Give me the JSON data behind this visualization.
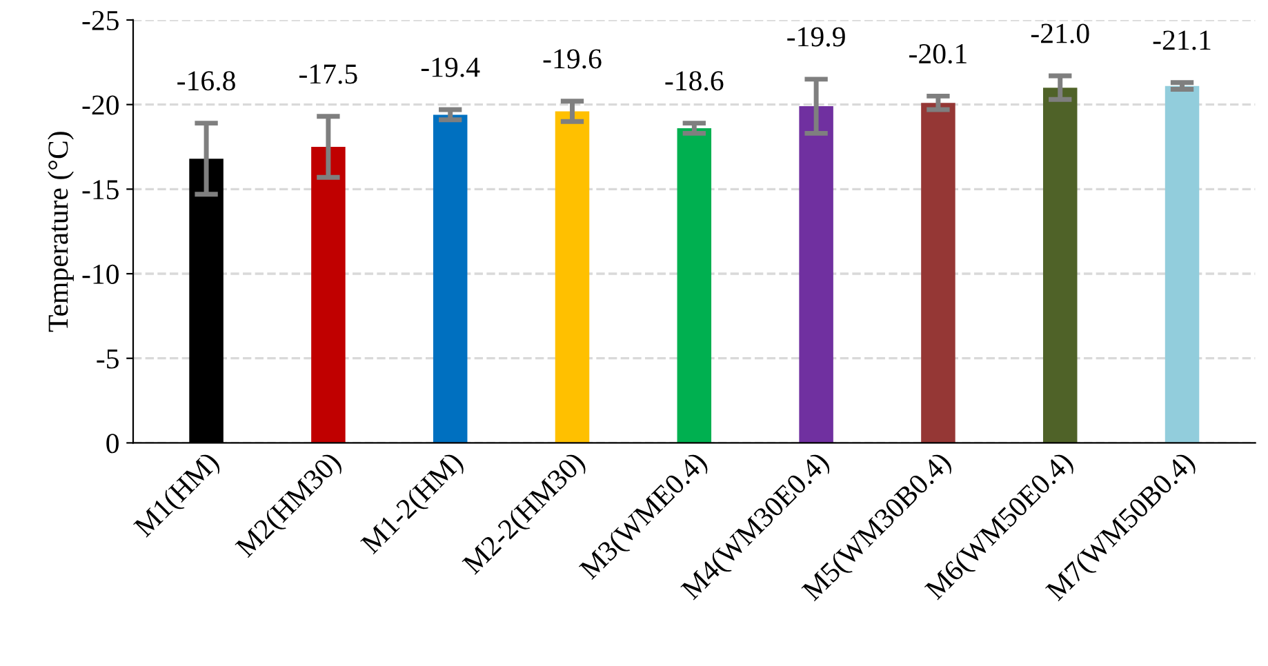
{
  "chart_data": {
    "type": "bar",
    "ylabel": "Temperature (°C)",
    "categories": [
      "M1(HM)",
      "M2(HM30)",
      "M1-2(HM)",
      "M2-2(HM30)",
      "M3(WME0.4)",
      "M4(WM30E0.4)",
      "M5(WM30B0.4)",
      "M6(WM50E0.4)",
      "M7(WM50B0.4)"
    ],
    "values": [
      -16.8,
      -17.5,
      -19.4,
      -19.6,
      -18.6,
      -19.9,
      -20.1,
      -21.0,
      -21.1
    ],
    "errors": [
      2.1,
      1.8,
      0.3,
      0.6,
      0.3,
      1.6,
      0.4,
      0.7,
      0.2
    ],
    "colors": [
      "#000000",
      "#c00000",
      "#0070c0",
      "#ffc000",
      "#00b050",
      "#7030a0",
      "#953735",
      "#4f6228",
      "#92cddc"
    ],
    "ylim": [
      0,
      -25
    ],
    "yticks": [
      0,
      -5,
      -10,
      -15,
      -20,
      -25
    ],
    "grid": "y",
    "value_labels": [
      "-16.8",
      "-17.5",
      "-19.4",
      "-19.6",
      "-18.6",
      "-19.9",
      "-20.1",
      "-21.0",
      "-21.1"
    ]
  }
}
